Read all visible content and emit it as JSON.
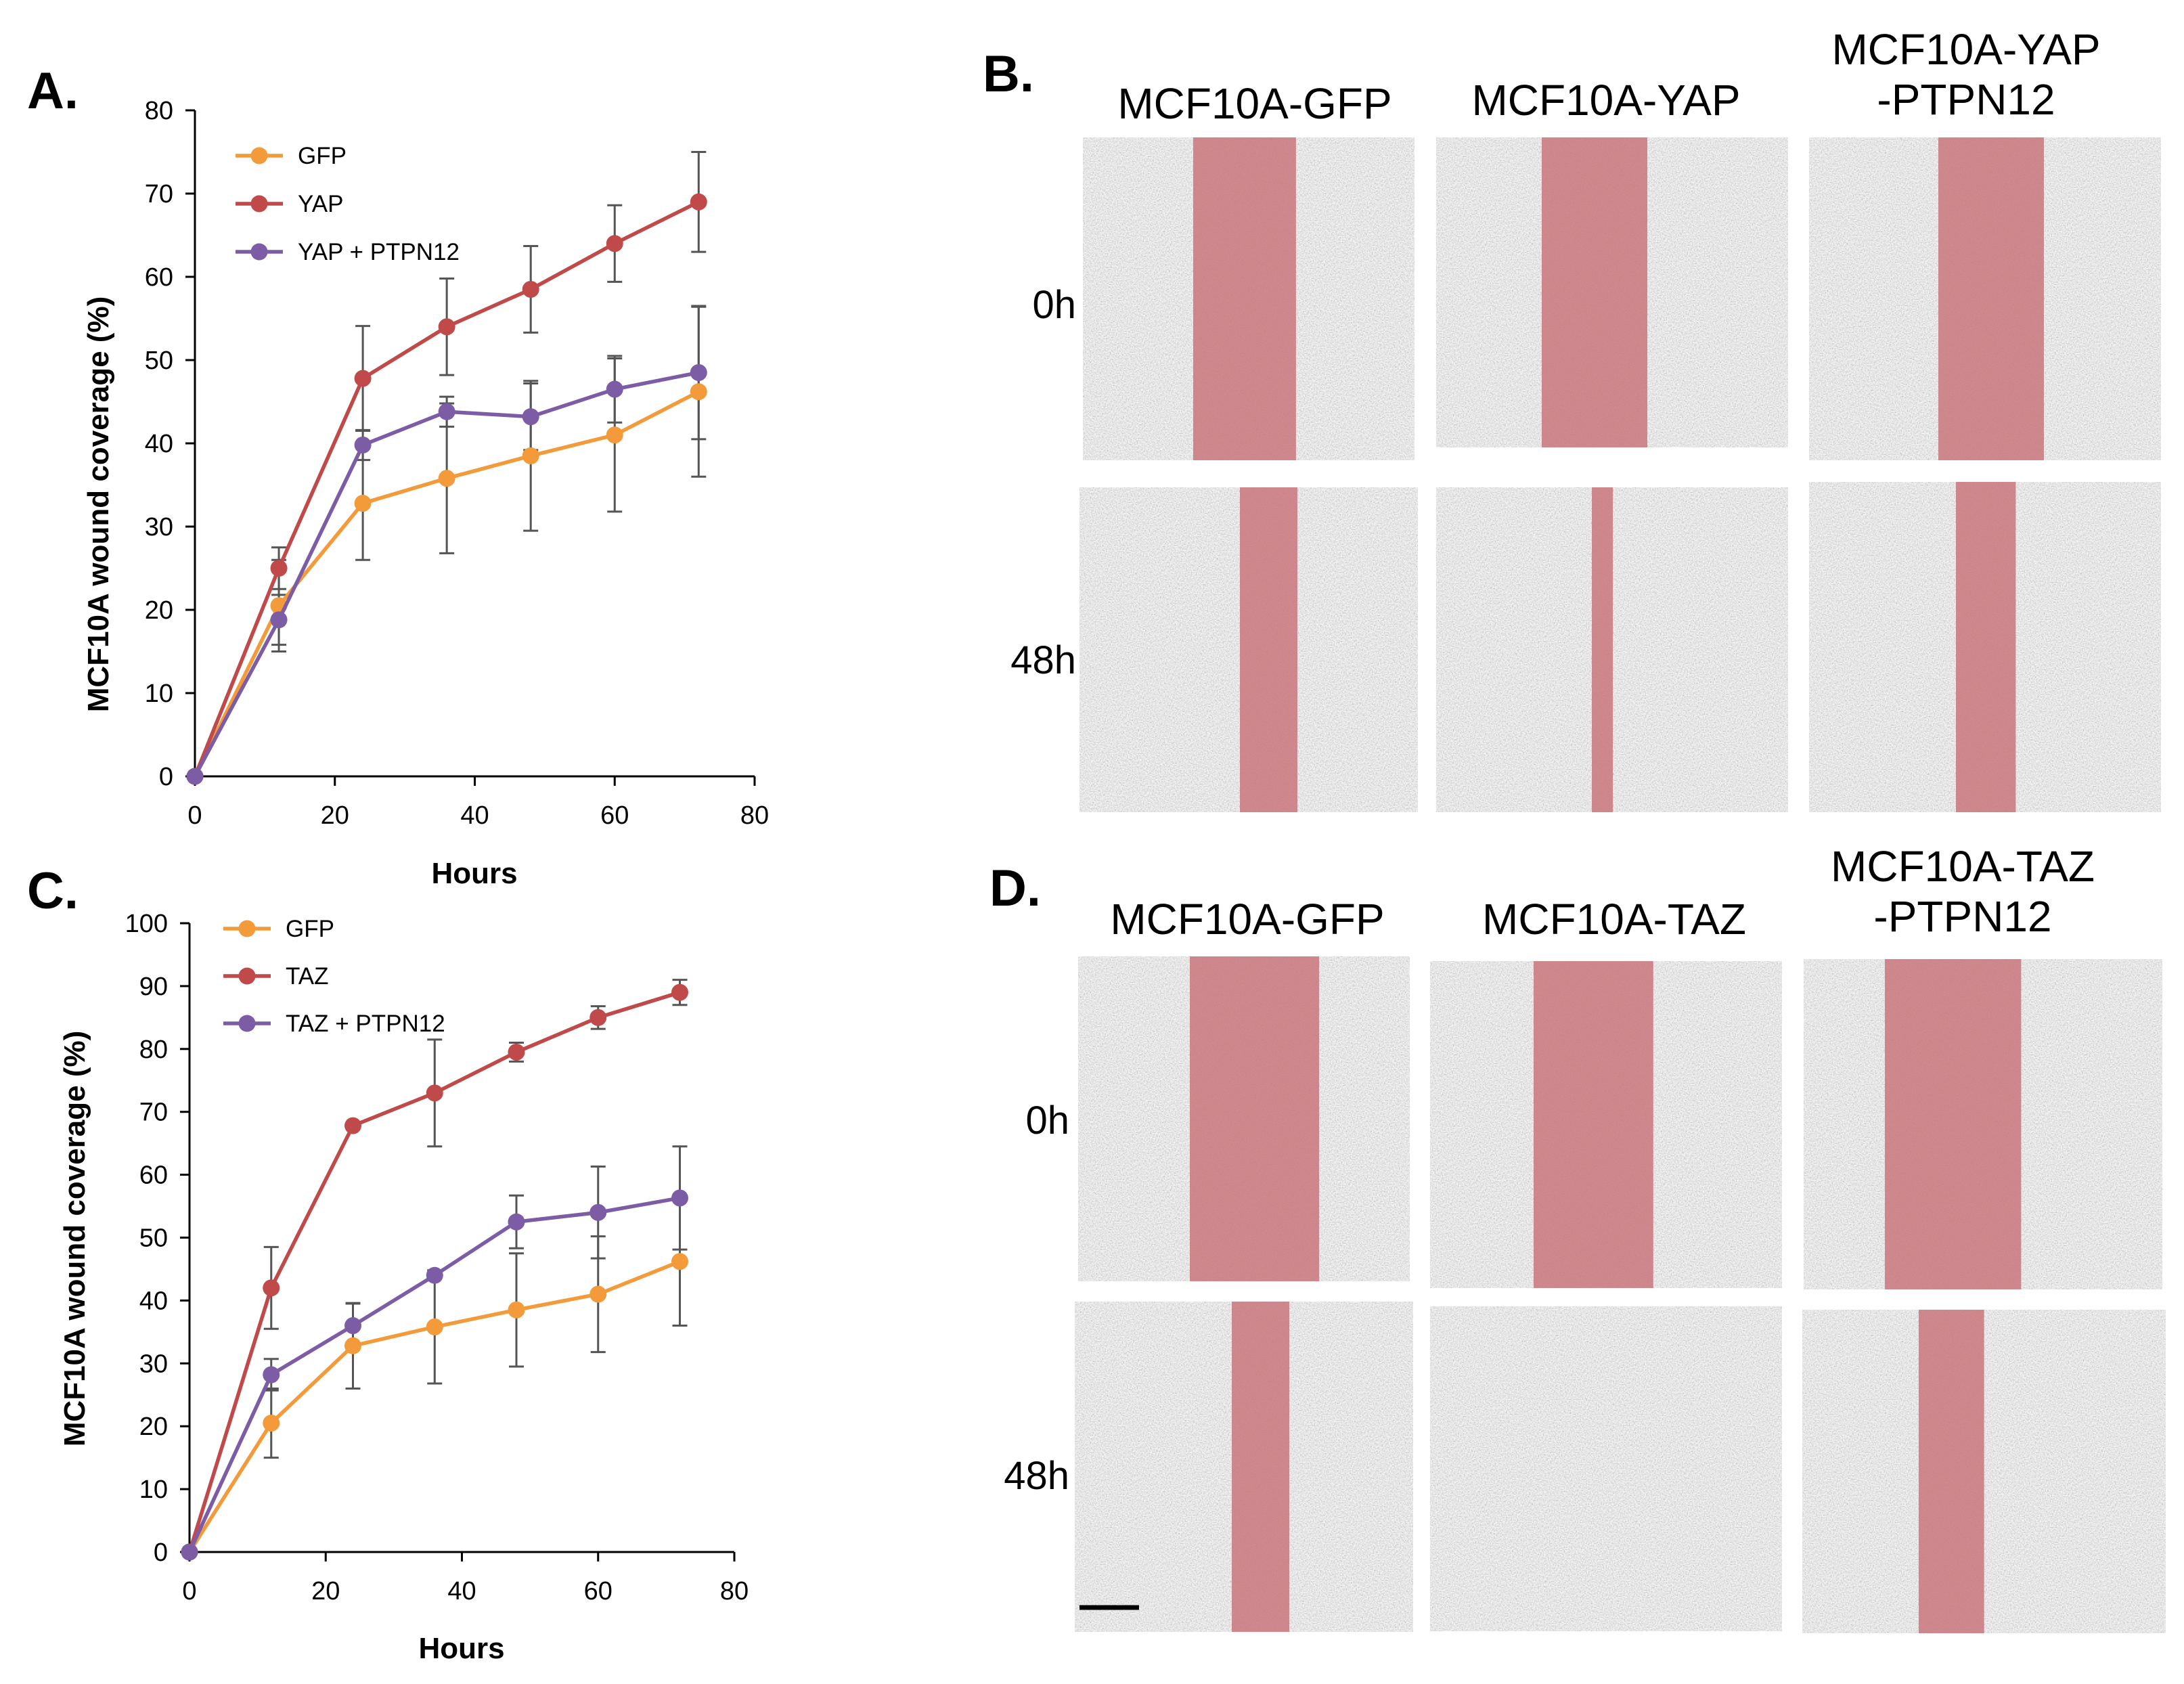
{
  "chart_data": [
    {
      "type": "line",
      "panel_label": "A.",
      "xlabel": "Hours",
      "ylabel": "MCF10A wound coverage (%)",
      "xlim": [
        0,
        80
      ],
      "ylim": [
        0,
        80
      ],
      "xticks": [
        "0",
        "20",
        "40",
        "60",
        "80"
      ],
      "yticks": [
        "0",
        "10",
        "20",
        "30",
        "40",
        "50",
        "60",
        "70",
        "80"
      ],
      "legend_position": "top-left",
      "x": [
        0,
        12,
        24,
        36,
        48,
        60,
        72
      ],
      "series": [
        {
          "name": "GFP",
          "color": "#f39a3b",
          "values": [
            0,
            20.5,
            32.8,
            35.8,
            38.5,
            41.0,
            46.2
          ],
          "errors": [
            0,
            5.5,
            6.8,
            9.0,
            9.0,
            9.2,
            10.2
          ]
        },
        {
          "name": "YAP",
          "color": "#c0494a",
          "values": [
            0,
            25.0,
            47.8,
            54.0,
            58.5,
            64.0,
            69.0
          ],
          "errors": [
            0,
            2.5,
            6.3,
            5.8,
            5.2,
            4.6,
            6.0
          ]
        },
        {
          "name": "YAP + PTPN12",
          "color": "#7d5ca6",
          "values": [
            0,
            18.8,
            39.8,
            43.8,
            43.2,
            46.5,
            48.5
          ],
          "errors": [
            0,
            3.0,
            1.8,
            1.8,
            4.0,
            4.0,
            8.0
          ]
        }
      ]
    },
    {
      "type": "line",
      "panel_label": "C.",
      "xlabel": "Hours",
      "ylabel": "MCF10A wound coverage (%)",
      "xlim": [
        0,
        80
      ],
      "ylim": [
        0,
        100
      ],
      "xticks": [
        "0",
        "20",
        "40",
        "60",
        "80"
      ],
      "yticks": [
        "0",
        "10",
        "20",
        "30",
        "40",
        "50",
        "60",
        "70",
        "80",
        "90",
        "100"
      ],
      "legend_position": "top-left",
      "x": [
        0,
        12,
        24,
        36,
        48,
        60,
        72
      ],
      "series": [
        {
          "name": "GFP",
          "color": "#f39a3b",
          "values": [
            0,
            20.5,
            32.8,
            35.8,
            38.5,
            41.0,
            46.2
          ],
          "errors": [
            0,
            5.5,
            6.8,
            9.0,
            9.0,
            9.2,
            10.2
          ]
        },
        {
          "name": "TAZ",
          "color": "#c0494a",
          "values": [
            0,
            42.0,
            67.8,
            73.0,
            79.5,
            85.0,
            89.0
          ],
          "errors": [
            0,
            6.5,
            0,
            8.5,
            1.5,
            1.8,
            2.0
          ]
        },
        {
          "name": "TAZ + PTPN12",
          "color": "#7d5ca6",
          "values": [
            0,
            28.2,
            36.0,
            44.0,
            52.5,
            54.0,
            56.3
          ],
          "errors": [
            0,
            2.5,
            3.5,
            0,
            4.2,
            7.3,
            8.2
          ]
        }
      ]
    }
  ],
  "images": {
    "B": {
      "panel_label": "B.",
      "columns": [
        "MCF10A-GFP",
        "MCF10A-YAP",
        "MCF10A-YAP\n-PTPN12"
      ],
      "rows": [
        "0h",
        "48h"
      ],
      "wound_widths_percent": [
        [
          0.31,
          0.3,
          0.3
        ],
        [
          0.17,
          0.06,
          0.17
        ]
      ]
    },
    "D": {
      "panel_label": "D.",
      "columns": [
        "MCF10A-GFP",
        "MCF10A-TAZ",
        "MCF10A-TAZ\n-PTPN12"
      ],
      "rows": [
        "0h",
        "48h"
      ],
      "wound_widths_percent": [
        [
          0.39,
          0.34,
          0.38
        ],
        [
          0.17,
          0,
          0.18
        ]
      ]
    }
  },
  "colors": {
    "wound": "#c9777c",
    "cell_bg": "#e6e6e6"
  }
}
